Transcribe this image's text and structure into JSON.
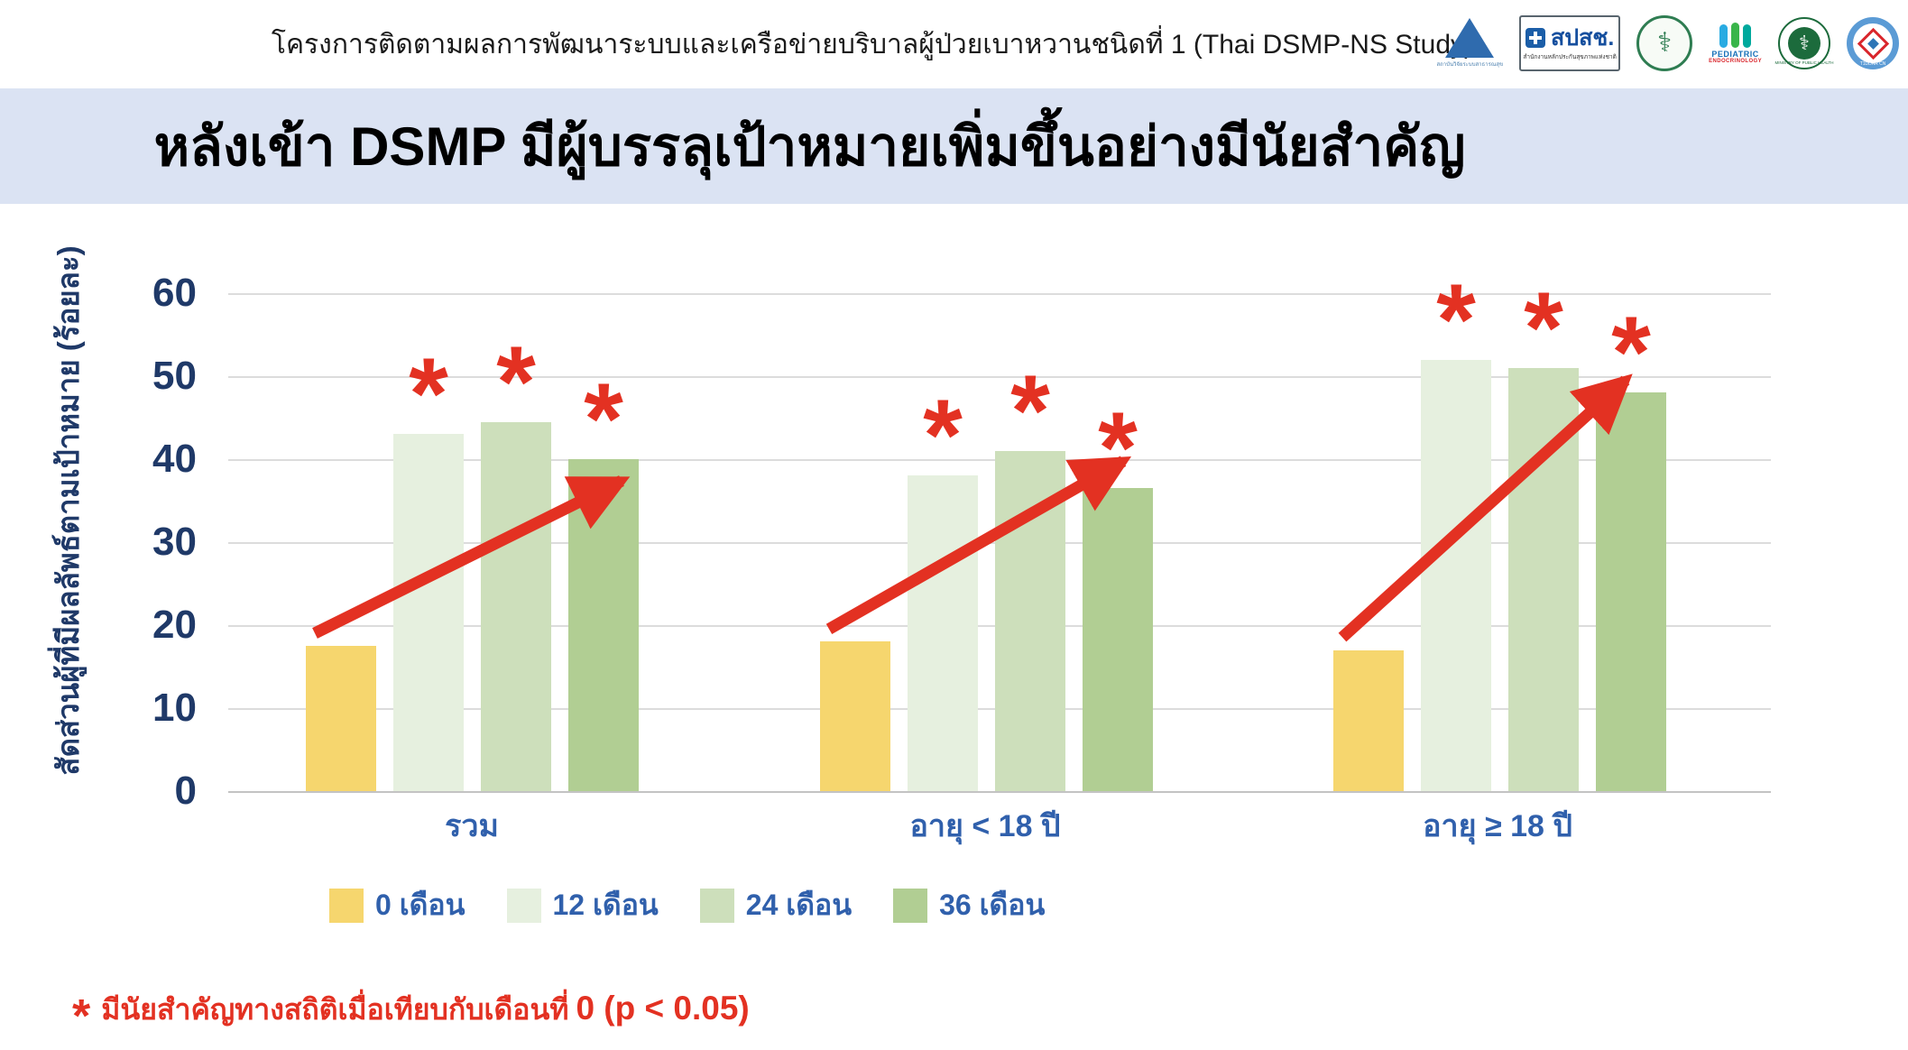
{
  "header": {
    "project_title": "โครงการติดตามผลการพัฒนาระบบและเครือข่ายบริบาลผู้ป่วยเบาหวานชนิดที่ 1 (Thai DSMP-NS Study)",
    "logos": [
      {
        "id": "hsri",
        "caption": "สถาบันวิจัยระบบสาธารณสุข"
      },
      {
        "id": "nhso",
        "label": "สปสช.",
        "caption": "สำนักงานหลักประกันสุขภาพแห่งชาติ"
      },
      {
        "id": "medical-seal",
        "label": ""
      },
      {
        "id": "thai-pediatric-endocrinology",
        "label": "PEDIATRIC",
        "sublabel": "ENDOCRINOLOGY"
      },
      {
        "id": "ministry-of-public-health",
        "label": "MINISTRY OF PUBLIC HEALTH"
      },
      {
        "id": "t1ddar-cn",
        "label": "T1DDAR CN"
      }
    ]
  },
  "banner": {
    "title": "หลังเข้า DSMP มีผู้บรรลุเป้าหมายเพิ่มขึ้นอย่างมีนัยสำคัญ"
  },
  "chart_data": {
    "type": "bar",
    "ylabel": "สัดส่วนผู้ที่มีผลลัพธ์ตามเป้าหมาย (ร้อยละ)",
    "ylim": [
      0,
      60
    ],
    "yticks": [
      0,
      10,
      20,
      30,
      40,
      50,
      60
    ],
    "grid": "horizontal",
    "legend_position": "bottom-left",
    "categories": [
      "รวม",
      "อายุ < 18 ปี",
      "อายุ ≥ 18 ปี"
    ],
    "series": [
      {
        "name": "0 เดือน",
        "color": "#F6D66E",
        "values": [
          17.5,
          18,
          17
        ],
        "significant": false
      },
      {
        "name": "12 เดือน",
        "color": "#E6F0DF",
        "values": [
          43,
          38,
          52
        ],
        "significant": true
      },
      {
        "name": "24 เดือน",
        "color": "#CDDFBB",
        "values": [
          44.5,
          41,
          51
        ],
        "significant": true
      },
      {
        "name": "36 เดือน",
        "color": "#B1CE93",
        "values": [
          40,
          36.5,
          48
        ],
        "significant": true
      }
    ],
    "significance_marker": "*",
    "annotation_arrows": "red arrow from the 0-month bar up to the 36-month bar in each category group",
    "accent_red": "#E33122",
    "axis_color": "#1F3968",
    "label_blue": "#3060AC"
  },
  "footnote": {
    "marker": "*",
    "text_thai": "มีนัยสำคัญทางสถิติเมื่อเทียบกับเดือนที่",
    "text_latin": "0 (p < 0.05)"
  }
}
